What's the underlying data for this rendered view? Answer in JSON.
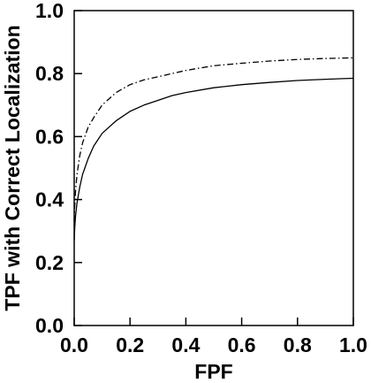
{
  "chart_data": {
    "type": "line",
    "title": "",
    "xlabel": "FPF",
    "ylabel": "TPF with Correct Localization",
    "xlim": [
      0.0,
      1.0
    ],
    "ylim": [
      0.0,
      1.0
    ],
    "xticks": [
      "0.0",
      "0.2",
      "0.4",
      "0.6",
      "0.8",
      "1.0"
    ],
    "yticks": [
      "0.0",
      "0.2",
      "0.4",
      "0.6",
      "0.8",
      "1.0"
    ],
    "grid": false,
    "legend": "none",
    "series": [
      {
        "style": "solid",
        "color": "#000000",
        "x": [
          0.0,
          0.002,
          0.005,
          0.01,
          0.02,
          0.03,
          0.05,
          0.07,
          0.1,
          0.15,
          0.2,
          0.25,
          0.3,
          0.35,
          0.4,
          0.5,
          0.6,
          0.7,
          0.8,
          0.9,
          1.0
        ],
        "y": [
          0.27,
          0.31,
          0.35,
          0.39,
          0.44,
          0.48,
          0.53,
          0.57,
          0.61,
          0.65,
          0.68,
          0.7,
          0.715,
          0.73,
          0.74,
          0.755,
          0.765,
          0.772,
          0.778,
          0.782,
          0.785
        ]
      },
      {
        "style": "dash-dot",
        "color": "#000000",
        "x": [
          0.0,
          0.002,
          0.005,
          0.01,
          0.02,
          0.03,
          0.05,
          0.07,
          0.1,
          0.15,
          0.2,
          0.25,
          0.3,
          0.35,
          0.4,
          0.5,
          0.6,
          0.7,
          0.8,
          0.9,
          1.0
        ],
        "y": [
          0.33,
          0.38,
          0.43,
          0.48,
          0.54,
          0.58,
          0.63,
          0.66,
          0.7,
          0.74,
          0.765,
          0.78,
          0.79,
          0.8,
          0.81,
          0.825,
          0.833,
          0.84,
          0.845,
          0.848,
          0.85
        ]
      }
    ]
  }
}
